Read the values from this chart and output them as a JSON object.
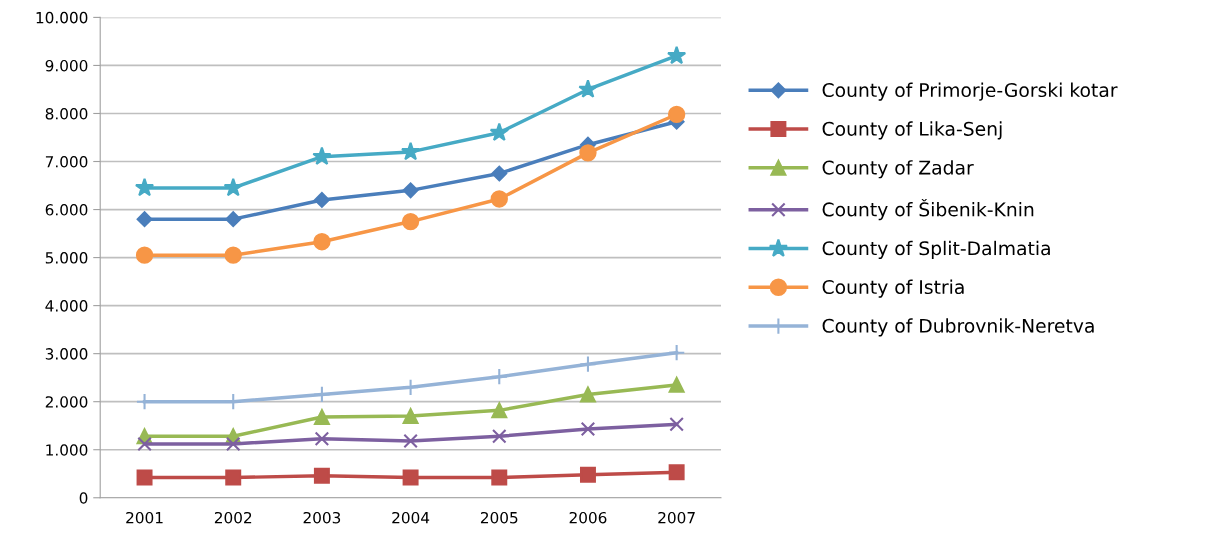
{
  "chart_data": {
    "type": "line",
    "categories": [
      "2001",
      "2002",
      "2003",
      "2004",
      "2005",
      "2006",
      "2007"
    ],
    "series": [
      {
        "name": "County of Primorje-Gorski kotar",
        "color": "#4a7ebb",
        "marker": "diamond",
        "values": [
          5800,
          5800,
          6200,
          6400,
          6750,
          7350,
          7830
        ]
      },
      {
        "name": "County of Lika-Senj",
        "color": "#be4b48",
        "marker": "square",
        "values": [
          420,
          420,
          460,
          420,
          420,
          480,
          530
        ]
      },
      {
        "name": "County of Zadar",
        "color": "#98b954",
        "marker": "triangle",
        "values": [
          1280,
          1280,
          1680,
          1700,
          1820,
          2150,
          2350
        ]
      },
      {
        "name": "County of Šibenik-Knin",
        "color": "#7d60a0",
        "marker": "cross",
        "values": [
          1120,
          1120,
          1230,
          1180,
          1280,
          1430,
          1530
        ]
      },
      {
        "name": "County of Split-Dalmatia",
        "color": "#46aac5",
        "marker": "star",
        "values": [
          6450,
          6450,
          7100,
          7200,
          7600,
          8500,
          9200
        ]
      },
      {
        "name": "County of Istria",
        "color": "#f79646",
        "marker": "circle",
        "values": [
          5050,
          5050,
          5330,
          5750,
          6220,
          7180,
          7980
        ]
      },
      {
        "name": "County of Dubrovnik-Neretva",
        "color": "#95b3d7",
        "marker": "plus",
        "values": [
          2000,
          2000,
          2150,
          2300,
          2520,
          2780,
          3020
        ]
      }
    ],
    "ylim": [
      0,
      10000
    ],
    "yticks": [
      0,
      {
        "value": 1000,
        "label": "1.000"
      },
      {
        "value": 2000,
        "label": "2.000"
      },
      {
        "value": 3000,
        "label": "3.000"
      },
      {
        "value": 4000,
        "label": "4.000"
      },
      {
        "value": 5000,
        "label": "5.000"
      },
      {
        "value": 6000,
        "label": "6.000"
      },
      {
        "value": 7000,
        "label": "7.000"
      },
      {
        "value": 8000,
        "label": "8.000"
      },
      {
        "value": 9000,
        "label": "9.000"
      },
      {
        "value": 10000,
        "label": "10.000"
      }
    ],
    "grid": "y",
    "legend": "right",
    "line_style": "solid"
  }
}
